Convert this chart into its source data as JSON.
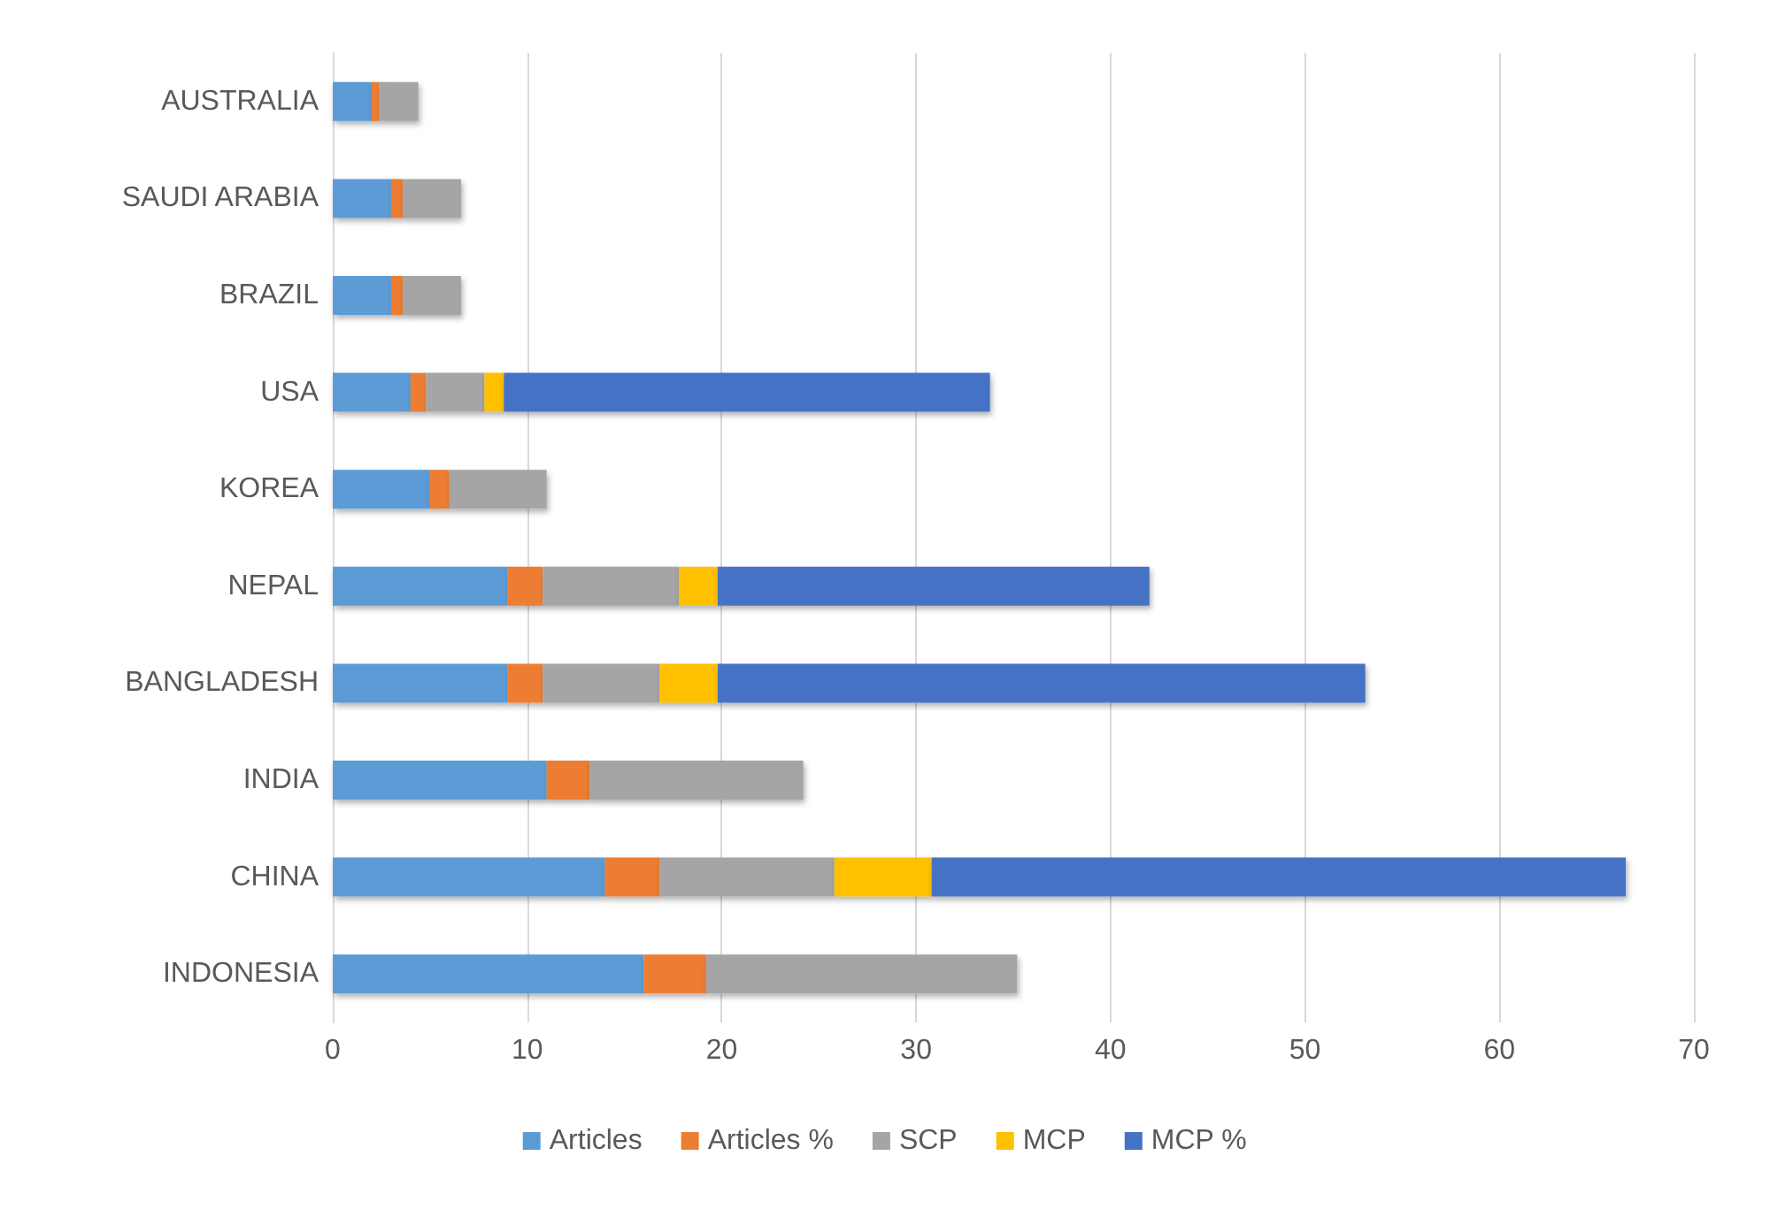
{
  "chart_data": {
    "type": "bar",
    "orientation": "horizontal",
    "stacked": true,
    "categories": [
      "AUSTRALIA",
      "SAUDI ARABIA",
      "BRAZIL",
      "USA",
      "KOREA",
      "NEPAL",
      "BANGLADESH",
      "INDIA",
      "CHINA",
      "INDONESIA"
    ],
    "series": [
      {
        "name": "Articles",
        "color": "#5b9bd5",
        "values": [
          2,
          3,
          3,
          4,
          5,
          9,
          9,
          11,
          14,
          16
        ]
      },
      {
        "name": "Articles %",
        "color": "#ed7d31",
        "values": [
          0.4,
          0.6,
          0.6,
          0.8,
          1.0,
          1.8,
          1.8,
          2.2,
          2.8,
          3.2
        ]
      },
      {
        "name": "SCP",
        "color": "#a5a5a5",
        "values": [
          2,
          3,
          3,
          3,
          5,
          7,
          6,
          11,
          9,
          16
        ]
      },
      {
        "name": "MCP",
        "color": "#ffc000",
        "values": [
          0,
          0,
          0,
          1,
          0,
          2,
          3,
          0,
          5,
          0
        ]
      },
      {
        "name": "MCP %",
        "color": "#4472c4",
        "values": [
          0,
          0,
          0,
          25,
          0,
          22.2,
          33.3,
          0,
          35.7,
          0
        ]
      }
    ],
    "xlim": [
      0,
      70
    ],
    "xticks": [
      0,
      10,
      20,
      30,
      40,
      50,
      60,
      70
    ],
    "grid": "x",
    "legend": "bottom"
  }
}
